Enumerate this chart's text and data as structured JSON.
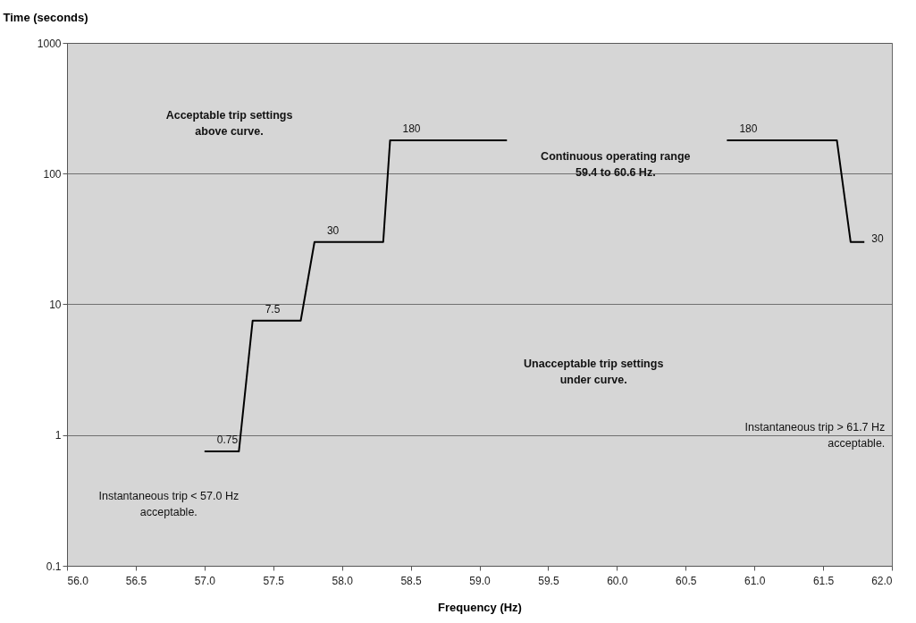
{
  "chart_data": {
    "type": "line",
    "xlabel": "Frequency (Hz)",
    "ylabel": "Time (seconds)",
    "series": [
      {
        "color": "#000000",
        "x": [
          57.0,
          57.25,
          57.35,
          57.7,
          57.8,
          58.3,
          58.35,
          59.2
        ],
        "values": [
          0.75,
          0.75,
          7.5,
          7.5,
          30,
          30,
          180,
          180
        ],
        "value_labels": [
          "0.75",
          null,
          "7.5",
          null,
          "30",
          null,
          "180",
          null
        ]
      },
      {
        "color": "#000000",
        "x": [
          60.8,
          61.6,
          61.7,
          61.8
        ],
        "values": [
          180,
          180,
          30,
          30
        ],
        "value_labels": [
          "180",
          null,
          null,
          "30"
        ]
      }
    ],
    "xlim": [
      56.0,
      62.0
    ],
    "xticks": [
      {
        "value": 56,
        "label": "56.0"
      },
      {
        "value": 56.5,
        "label": "56.5"
      },
      {
        "value": 57,
        "label": "57.0"
      },
      {
        "value": 57.5,
        "label": "57.5"
      },
      {
        "value": 58,
        "label": "58.0"
      },
      {
        "value": 58.5,
        "label": "58.5"
      },
      {
        "value": 59,
        "label": "59.0"
      },
      {
        "value": 59.5,
        "label": "59.5"
      },
      {
        "value": 60,
        "label": "60.0"
      },
      {
        "value": 60.5,
        "label": "60.5"
      },
      {
        "value": 61,
        "label": "61.0"
      },
      {
        "value": 61.5,
        "label": "61.5"
      },
      {
        "value": 62,
        "label": "62.0"
      }
    ],
    "ylim": [
      0.1,
      1000
    ],
    "yticks": [
      0.1,
      1,
      10,
      100,
      1000
    ],
    "log": "y",
    "grid": "y",
    "marker": "none",
    "line_style": "solid",
    "annotations": [
      "Acceptable trip settings\nabove curve.",
      "Continuous operating range\n59.4 to 60.6 Hz.",
      "Unacceptable trip settings\nunder curve.",
      "Instantaneous trip < 57.0 Hz\nacceptable.",
      "Instantaneous trip > 61.7 Hz\nacceptable."
    ]
  }
}
